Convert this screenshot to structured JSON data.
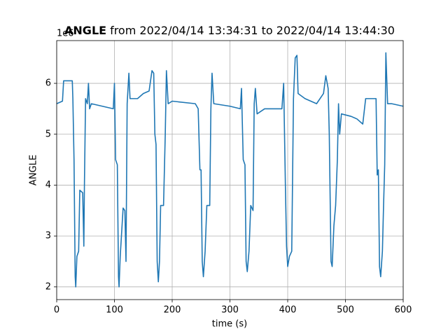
{
  "chart_data": {
    "type": "line",
    "title_bold": "ANGLE",
    "title_rest": "from 2022/04/14 13:34:31 to 2022/04/14 13:44:30",
    "x_label": "time (s)",
    "y_label": "ANGLE",
    "y_offset_label": "1e6",
    "xlim": [
      0,
      600
    ],
    "xticks": [
      0,
      100,
      200,
      300,
      400,
      500,
      600
    ],
    "ylim": [
      1.75,
      6.84
    ],
    "yticks": [
      2,
      3,
      4,
      5,
      6
    ],
    "grid": true,
    "series": [
      {
        "color": "#1f77b4",
        "x": [
          0,
          10,
          12,
          27,
          28,
          30,
          32,
          33,
          35,
          38,
          40,
          45,
          47,
          48,
          50,
          53,
          55,
          57,
          60,
          98,
          100,
          102,
          105,
          107,
          108,
          110,
          115,
          118,
          120,
          122,
          125,
          127,
          140,
          150,
          160,
          165,
          168,
          170,
          172,
          174,
          176,
          178,
          180,
          185,
          188,
          190,
          193,
          200,
          240,
          245,
          248,
          250,
          252,
          254,
          257,
          260,
          265,
          267,
          269,
          272,
          300,
          318,
          320,
          323,
          326,
          328,
          330,
          333,
          336,
          340,
          342,
          344,
          347,
          360,
          390,
          393,
          396,
          398,
          400,
          403,
          407,
          410,
          413,
          416,
          418,
          430,
          450,
          462,
          466,
          470,
          472,
          475,
          477,
          480,
          483,
          486,
          488,
          490,
          493,
          510,
          520,
          530,
          535,
          540,
          553,
          555,
          557,
          559,
          561,
          564,
          566,
          568,
          570,
          573,
          580,
          600
        ],
        "values": [
          5.6,
          5.65,
          6.05,
          6.05,
          5.7,
          4.5,
          2.2,
          2.0,
          2.6,
          2.7,
          3.9,
          3.85,
          2.8,
          4.0,
          5.7,
          5.6,
          6.0,
          5.5,
          5.6,
          5.5,
          6.0,
          4.5,
          4.4,
          2.2,
          2.0,
          2.6,
          3.55,
          3.5,
          2.5,
          5.6,
          6.2,
          5.7,
          5.7,
          5.8,
          5.85,
          6.25,
          6.2,
          5.0,
          4.8,
          2.5,
          2.1,
          2.5,
          3.6,
          3.6,
          5.0,
          6.25,
          5.6,
          5.65,
          5.6,
          5.5,
          4.3,
          4.3,
          2.5,
          2.2,
          2.7,
          3.6,
          3.6,
          5.5,
          6.2,
          5.6,
          5.55,
          5.5,
          5.9,
          4.5,
          4.4,
          2.5,
          2.3,
          2.7,
          3.6,
          3.5,
          5.6,
          5.9,
          5.4,
          5.5,
          5.5,
          6.0,
          4.0,
          2.8,
          2.4,
          2.6,
          2.7,
          5.7,
          6.5,
          6.55,
          5.8,
          5.7,
          5.6,
          5.8,
          6.15,
          5.9,
          5.0,
          2.5,
          2.4,
          3.2,
          3.6,
          4.5,
          5.6,
          5.0,
          5.4,
          5.35,
          5.3,
          5.2,
          5.7,
          5.7,
          5.7,
          4.2,
          4.3,
          2.4,
          2.2,
          2.7,
          3.6,
          4.4,
          6.6,
          5.6,
          5.6,
          5.55
        ]
      }
    ]
  }
}
